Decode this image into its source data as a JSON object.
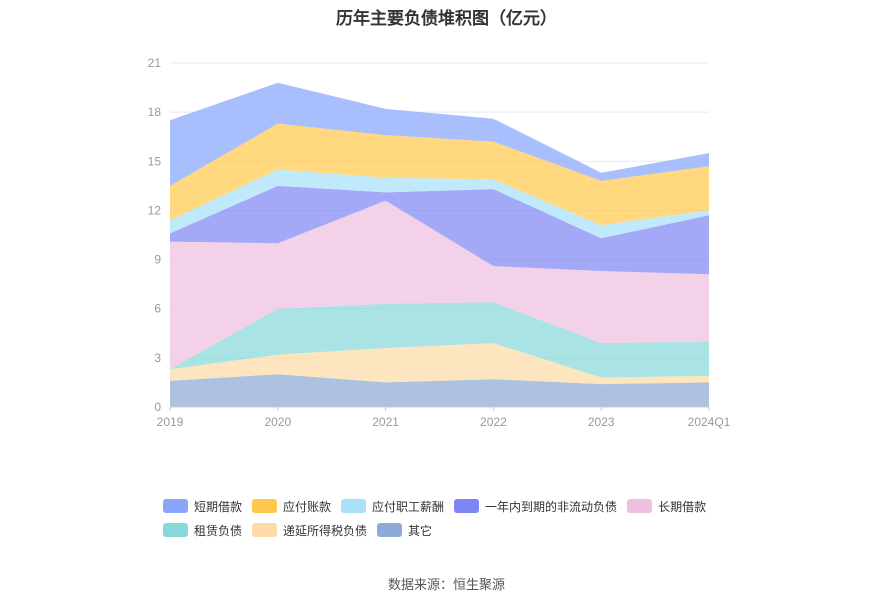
{
  "title": "历年主要负债堆积图（亿元）",
  "source": "数据来源：恒生聚源",
  "chart_data": {
    "type": "area",
    "stacked": true,
    "categories": [
      "2019",
      "2020",
      "2021",
      "2022",
      "2023",
      "2024Q1"
    ],
    "ylim": [
      0,
      21
    ],
    "yticks": [
      "0",
      "3",
      "6",
      "9",
      "12",
      "15",
      "18",
      "21"
    ],
    "grid": true,
    "legend_position": "bottom",
    "series": [
      {
        "name": "其它",
        "color": "#8eaad6",
        "values": [
          1.6,
          2.0,
          1.5,
          1.7,
          1.4,
          1.5
        ]
      },
      {
        "name": "递延所得税负债",
        "color": "#fcdba6",
        "values": [
          0.7,
          1.2,
          2.1,
          2.2,
          0.4,
          0.4
        ]
      },
      {
        "name": "租赁负债",
        "color": "#88d8d8",
        "values": [
          0.0,
          2.8,
          2.7,
          2.5,
          2.1,
          2.1
        ]
      },
      {
        "name": "长期借款",
        "color": "#eebfdf",
        "values": [
          7.8,
          4.0,
          6.3,
          2.2,
          4.4,
          4.1
        ]
      },
      {
        "name": "一年内到期的非流动负债",
        "color": "#7f86f4",
        "values": [
          0.5,
          3.5,
          0.5,
          4.7,
          2.0,
          3.6
        ]
      },
      {
        "name": "应付职工薪酬",
        "color": "#a9e1fb",
        "values": [
          0.8,
          1.0,
          0.9,
          0.6,
          0.8,
          0.3
        ]
      },
      {
        "name": "应付账款",
        "color": "#ffc94d",
        "values": [
          2.1,
          2.8,
          2.6,
          2.3,
          2.7,
          2.7
        ]
      },
      {
        "name": "短期借款",
        "color": "#88a6fc",
        "values": [
          4.0,
          2.5,
          1.6,
          1.4,
          0.5,
          0.8
        ]
      }
    ]
  },
  "legend": {
    "rows": [
      [
        {
          "label": "短期借款",
          "color": "#88a6fc"
        },
        {
          "label": "应付账款",
          "color": "#ffc94d"
        },
        {
          "label": "应付职工薪酬",
          "color": "#a9e1fb"
        },
        {
          "label": "一年内到期的非流动负债",
          "color": "#7f86f4"
        },
        {
          "label": "长期借款",
          "color": "#eebfdf"
        }
      ],
      [
        {
          "label": "租赁负债",
          "color": "#88d8d8"
        },
        {
          "label": "递延所得税负债",
          "color": "#fcdba6"
        },
        {
          "label": "其它",
          "color": "#8eaad6"
        }
      ]
    ]
  }
}
